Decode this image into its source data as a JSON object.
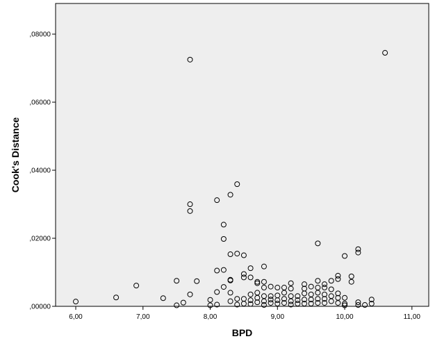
{
  "chart_data": {
    "type": "scatter",
    "title": "",
    "xlabel": "BPD",
    "ylabel": "Cook's Distance",
    "xlim": [
      5.7,
      11.25
    ],
    "ylim": [
      0,
      0.089
    ],
    "x_ticks": [
      6,
      7,
      8,
      9,
      10,
      11
    ],
    "x_tick_labels": [
      "6,00",
      "7,00",
      "8,00",
      "9,00",
      "10,00",
      "11,00"
    ],
    "y_ticks": [
      0,
      0.02,
      0.04,
      0.06,
      0.08
    ],
    "y_tick_labels": [
      ",00000",
      ",02000",
      ",04000",
      ",06000",
      ",08000"
    ],
    "grid": false,
    "plot_background": "#eeeeee",
    "marker_color": "#000000",
    "points": [
      [
        6.0,
        0.0014
      ],
      [
        6.6,
        0.0026
      ],
      [
        6.9,
        0.0061
      ],
      [
        7.3,
        0.0024
      ],
      [
        7.5,
        0.0075
      ],
      [
        7.5,
        0.0003
      ],
      [
        7.6,
        0.0011
      ],
      [
        7.7,
        0.0725
      ],
      [
        7.7,
        0.03
      ],
      [
        7.7,
        0.028
      ],
      [
        7.7,
        0.0035
      ],
      [
        7.8,
        0.0074
      ],
      [
        8.0,
        0.0019
      ],
      [
        8.0,
        0.0003
      ],
      [
        8.1,
        0.0312
      ],
      [
        8.1,
        0.0105
      ],
      [
        8.1,
        0.0042
      ],
      [
        8.1,
        0.0005
      ],
      [
        8.2,
        0.024
      ],
      [
        8.2,
        0.0198
      ],
      [
        8.2,
        0.0107
      ],
      [
        8.2,
        0.0057
      ],
      [
        8.3,
        0.0328
      ],
      [
        8.3,
        0.0153
      ],
      [
        8.3,
        0.0078
      ],
      [
        8.3,
        0.0076
      ],
      [
        8.3,
        0.004
      ],
      [
        8.3,
        0.0015
      ],
      [
        8.4,
        0.0359
      ],
      [
        8.4,
        0.0155
      ],
      [
        8.4,
        0.0022
      ],
      [
        8.4,
        0.0005
      ],
      [
        8.5,
        0.015
      ],
      [
        8.5,
        0.0095
      ],
      [
        8.5,
        0.0085
      ],
      [
        8.5,
        0.0022
      ],
      [
        8.5,
        0.0008
      ],
      [
        8.6,
        0.0112
      ],
      [
        8.6,
        0.0085
      ],
      [
        8.6,
        0.0035
      ],
      [
        8.6,
        0.0018
      ],
      [
        8.6,
        0.0007
      ],
      [
        8.7,
        0.0072
      ],
      [
        8.7,
        0.0068
      ],
      [
        8.7,
        0.004
      ],
      [
        8.7,
        0.0025
      ],
      [
        8.7,
        0.0012
      ],
      [
        8.8,
        0.0117
      ],
      [
        8.8,
        0.0072
      ],
      [
        8.8,
        0.0055
      ],
      [
        8.8,
        0.003
      ],
      [
        8.8,
        0.0015
      ],
      [
        8.8,
        0.0004
      ],
      [
        8.9,
        0.0058
      ],
      [
        8.9,
        0.003
      ],
      [
        8.9,
        0.002
      ],
      [
        8.9,
        0.001
      ],
      [
        9.0,
        0.0055
      ],
      [
        9.0,
        0.0032
      ],
      [
        9.0,
        0.0018
      ],
      [
        9.0,
        0.0008
      ],
      [
        9.1,
        0.0055
      ],
      [
        9.1,
        0.004
      ],
      [
        9.1,
        0.0022
      ],
      [
        9.1,
        0.001
      ],
      [
        9.2,
        0.0068
      ],
      [
        9.2,
        0.0052
      ],
      [
        9.2,
        0.003
      ],
      [
        9.2,
        0.0015
      ],
      [
        9.2,
        0.0005
      ],
      [
        9.3,
        0.003
      ],
      [
        9.3,
        0.0018
      ],
      [
        9.3,
        0.0008
      ],
      [
        9.4,
        0.0065
      ],
      [
        9.4,
        0.0052
      ],
      [
        9.4,
        0.0038
      ],
      [
        9.4,
        0.002
      ],
      [
        9.4,
        0.0008
      ],
      [
        9.5,
        0.0058
      ],
      [
        9.5,
        0.0035
      ],
      [
        9.5,
        0.002
      ],
      [
        9.5,
        0.0008
      ],
      [
        9.6,
        0.0185
      ],
      [
        9.6,
        0.0075
      ],
      [
        9.6,
        0.0055
      ],
      [
        9.6,
        0.004
      ],
      [
        9.6,
        0.0022
      ],
      [
        9.6,
        0.001
      ],
      [
        9.7,
        0.0065
      ],
      [
        9.7,
        0.0055
      ],
      [
        9.7,
        0.0035
      ],
      [
        9.7,
        0.0022
      ],
      [
        9.7,
        0.001
      ],
      [
        9.8,
        0.0075
      ],
      [
        9.8,
        0.005
      ],
      [
        9.8,
        0.003
      ],
      [
        9.8,
        0.0015
      ],
      [
        9.9,
        0.009
      ],
      [
        9.9,
        0.008
      ],
      [
        9.9,
        0.0038
      ],
      [
        9.9,
        0.0025
      ],
      [
        9.9,
        0.001
      ],
      [
        10.0,
        0.0148
      ],
      [
        10.0,
        0.0025
      ],
      [
        10.0,
        0.0008
      ],
      [
        10.0,
        0.0003
      ],
      [
        10.1,
        0.0088
      ],
      [
        10.1,
        0.0072
      ],
      [
        10.2,
        0.0168
      ],
      [
        10.2,
        0.0158
      ],
      [
        10.2,
        0.0012
      ],
      [
        10.2,
        0.0004
      ],
      [
        10.3,
        0.0004
      ],
      [
        10.4,
        0.002
      ],
      [
        10.4,
        0.0008
      ],
      [
        10.6,
        0.0745
      ]
    ]
  }
}
